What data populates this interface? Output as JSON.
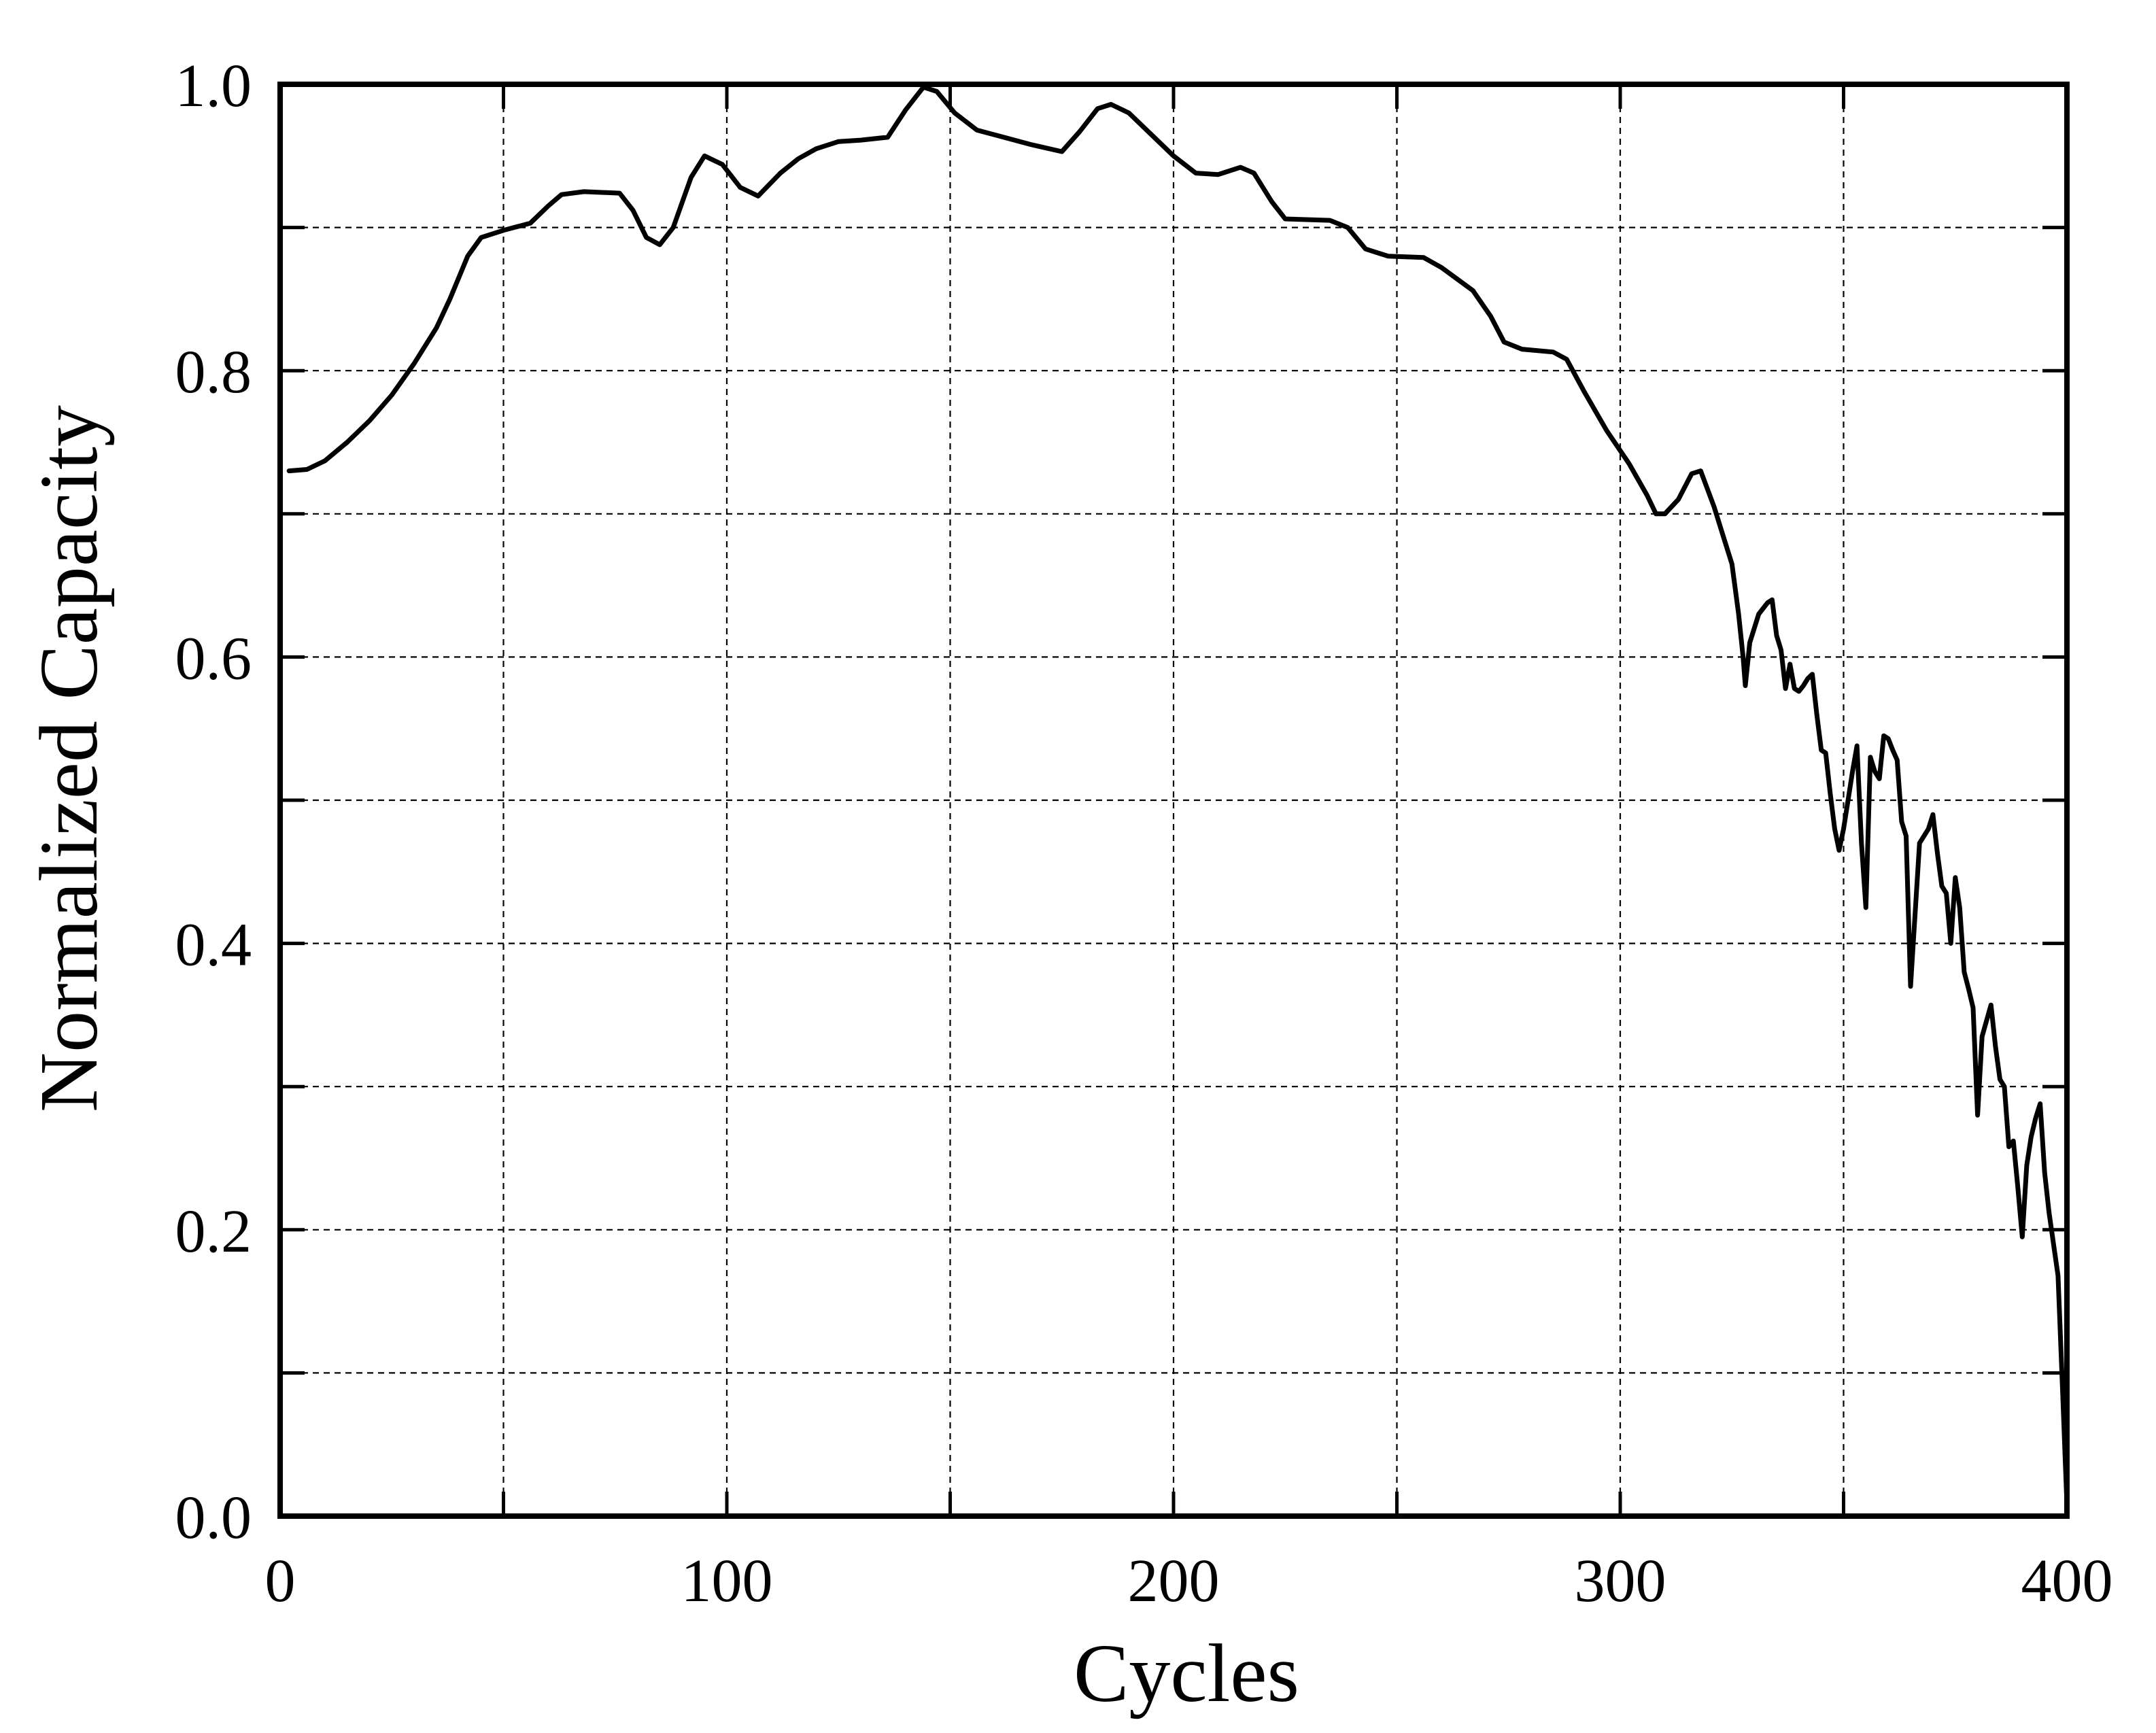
{
  "chart_data": {
    "type": "line",
    "title": "",
    "xlabel": "Cycles",
    "ylabel": "Normalized Capacity",
    "xlim": [
      0,
      400
    ],
    "ylim": [
      0,
      1.0
    ],
    "x_ticks": [
      0,
      100,
      200,
      300,
      400
    ],
    "x_tick_labels": [
      "0",
      "100",
      "200",
      "300",
      "400"
    ],
    "x_minor_ticks": [
      50,
      150,
      250,
      350
    ],
    "y_ticks": [
      0.0,
      0.2,
      0.4,
      0.6,
      0.8,
      1.0
    ],
    "y_tick_labels": [
      "0.0",
      "0.2",
      "0.4",
      "0.6",
      "0.8",
      "1.0"
    ],
    "y_minor_ticks": [
      0.1,
      0.3,
      0.5,
      0.7,
      0.9
    ],
    "grid": true,
    "colors": {
      "line": "#000000",
      "grid": "#000000",
      "frame": "#000000"
    },
    "series": [
      {
        "name": "Normalized Capacity",
        "points": [
          [
            2,
            0.73
          ],
          [
            6,
            0.731
          ],
          [
            10,
            0.737
          ],
          [
            15,
            0.75
          ],
          [
            20,
            0.765
          ],
          [
            25,
            0.783
          ],
          [
            30,
            0.805
          ],
          [
            35,
            0.83
          ],
          [
            38,
            0.85
          ],
          [
            42,
            0.88
          ],
          [
            45,
            0.893
          ],
          [
            50,
            0.898
          ],
          [
            56,
            0.903
          ],
          [
            60,
            0.915
          ],
          [
            63,
            0.923
          ],
          [
            68,
            0.925
          ],
          [
            76,
            0.924
          ],
          [
            79,
            0.912
          ],
          [
            82,
            0.893
          ],
          [
            85,
            0.888
          ],
          [
            88,
            0.9
          ],
          [
            92,
            0.935
          ],
          [
            95,
            0.95
          ],
          [
            99,
            0.944
          ],
          [
            103,
            0.928
          ],
          [
            107,
            0.922
          ],
          [
            112,
            0.938
          ],
          [
            116,
            0.948
          ],
          [
            120,
            0.955
          ],
          [
            125,
            0.96
          ],
          [
            130,
            0.961
          ],
          [
            136,
            0.963
          ],
          [
            140,
            0.982
          ],
          [
            144,
            0.998
          ],
          [
            147,
            0.995
          ],
          [
            151,
            0.98
          ],
          [
            156,
            0.968
          ],
          [
            162,
            0.963
          ],
          [
            168,
            0.958
          ],
          [
            175,
            0.953
          ],
          [
            179,
            0.967
          ],
          [
            183,
            0.983
          ],
          [
            186,
            0.986
          ],
          [
            190,
            0.98
          ],
          [
            195,
            0.965
          ],
          [
            200,
            0.95
          ],
          [
            205,
            0.938
          ],
          [
            210,
            0.937
          ],
          [
            215,
            0.942
          ],
          [
            218,
            0.938
          ],
          [
            222,
            0.918
          ],
          [
            225,
            0.906
          ],
          [
            235,
            0.905
          ],
          [
            239,
            0.9
          ],
          [
            243,
            0.885
          ],
          [
            248,
            0.88
          ],
          [
            256,
            0.879
          ],
          [
            260,
            0.872
          ],
          [
            267,
            0.856
          ],
          [
            271,
            0.838
          ],
          [
            274,
            0.82
          ],
          [
            278,
            0.815
          ],
          [
            285,
            0.813
          ],
          [
            288,
            0.808
          ],
          [
            292,
            0.785
          ],
          [
            297,
            0.758
          ],
          [
            302,
            0.735
          ],
          [
            306,
            0.713
          ],
          [
            308,
            0.7
          ],
          [
            310,
            0.7
          ],
          [
            313,
            0.71
          ],
          [
            316,
            0.728
          ],
          [
            318,
            0.73
          ],
          [
            321,
            0.705
          ],
          [
            323,
            0.685
          ],
          [
            325,
            0.665
          ],
          [
            326.5,
            0.63
          ],
          [
            327.5,
            0.6
          ],
          [
            328,
            0.58
          ],
          [
            329,
            0.61
          ],
          [
            331,
            0.63
          ],
          [
            333,
            0.638
          ],
          [
            334,
            0.64
          ],
          [
            335,
            0.615
          ],
          [
            336,
            0.605
          ],
          [
            337,
            0.578
          ],
          [
            338,
            0.595
          ],
          [
            339,
            0.578
          ],
          [
            340,
            0.576
          ],
          [
            341,
            0.58
          ],
          [
            342,
            0.585
          ],
          [
            343,
            0.588
          ],
          [
            344,
            0.56
          ],
          [
            345,
            0.535
          ],
          [
            346,
            0.533
          ],
          [
            347,
            0.505
          ],
          [
            348,
            0.48
          ],
          [
            349,
            0.465
          ],
          [
            350,
            0.48
          ],
          [
            351,
            0.5
          ],
          [
            352,
            0.52
          ],
          [
            353,
            0.538
          ],
          [
            354,
            0.47
          ],
          [
            355,
            0.425
          ],
          [
            356,
            0.53
          ],
          [
            357,
            0.52
          ],
          [
            358,
            0.515
          ],
          [
            359,
            0.545
          ],
          [
            360,
            0.543
          ],
          [
            361,
            0.535
          ],
          [
            362,
            0.528
          ],
          [
            363,
            0.485
          ],
          [
            364,
            0.475
          ],
          [
            365,
            0.37
          ],
          [
            367,
            0.47
          ],
          [
            369,
            0.48
          ],
          [
            370,
            0.49
          ],
          [
            371,
            0.463
          ],
          [
            372,
            0.44
          ],
          [
            373,
            0.435
          ],
          [
            374,
            0.4
          ],
          [
            375,
            0.446
          ],
          [
            376,
            0.425
          ],
          [
            377,
            0.38
          ],
          [
            378,
            0.368
          ],
          [
            379,
            0.355
          ],
          [
            380,
            0.28
          ],
          [
            381,
            0.335
          ],
          [
            383,
            0.357
          ],
          [
            384,
            0.328
          ],
          [
            385,
            0.305
          ],
          [
            386,
            0.3
          ],
          [
            387,
            0.258
          ],
          [
            388,
            0.262
          ],
          [
            389,
            0.23
          ],
          [
            390,
            0.195
          ],
          [
            391,
            0.245
          ],
          [
            392,
            0.265
          ],
          [
            393,
            0.278
          ],
          [
            394,
            0.288
          ],
          [
            395,
            0.24
          ],
          [
            396,
            0.212
          ],
          [
            398,
            0.168
          ],
          [
            399,
            0.09
          ],
          [
            400,
            0.008
          ]
        ]
      }
    ]
  }
}
